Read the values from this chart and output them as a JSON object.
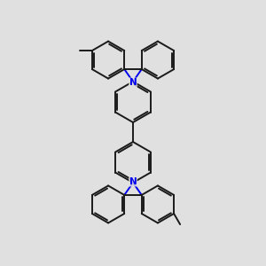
{
  "background_color": "#e0e0e0",
  "line_color": "#1a1a1a",
  "N_color": "#0000ee",
  "line_width": 1.4,
  "figsize": [
    3.0,
    3.0
  ],
  "dpi": 100
}
